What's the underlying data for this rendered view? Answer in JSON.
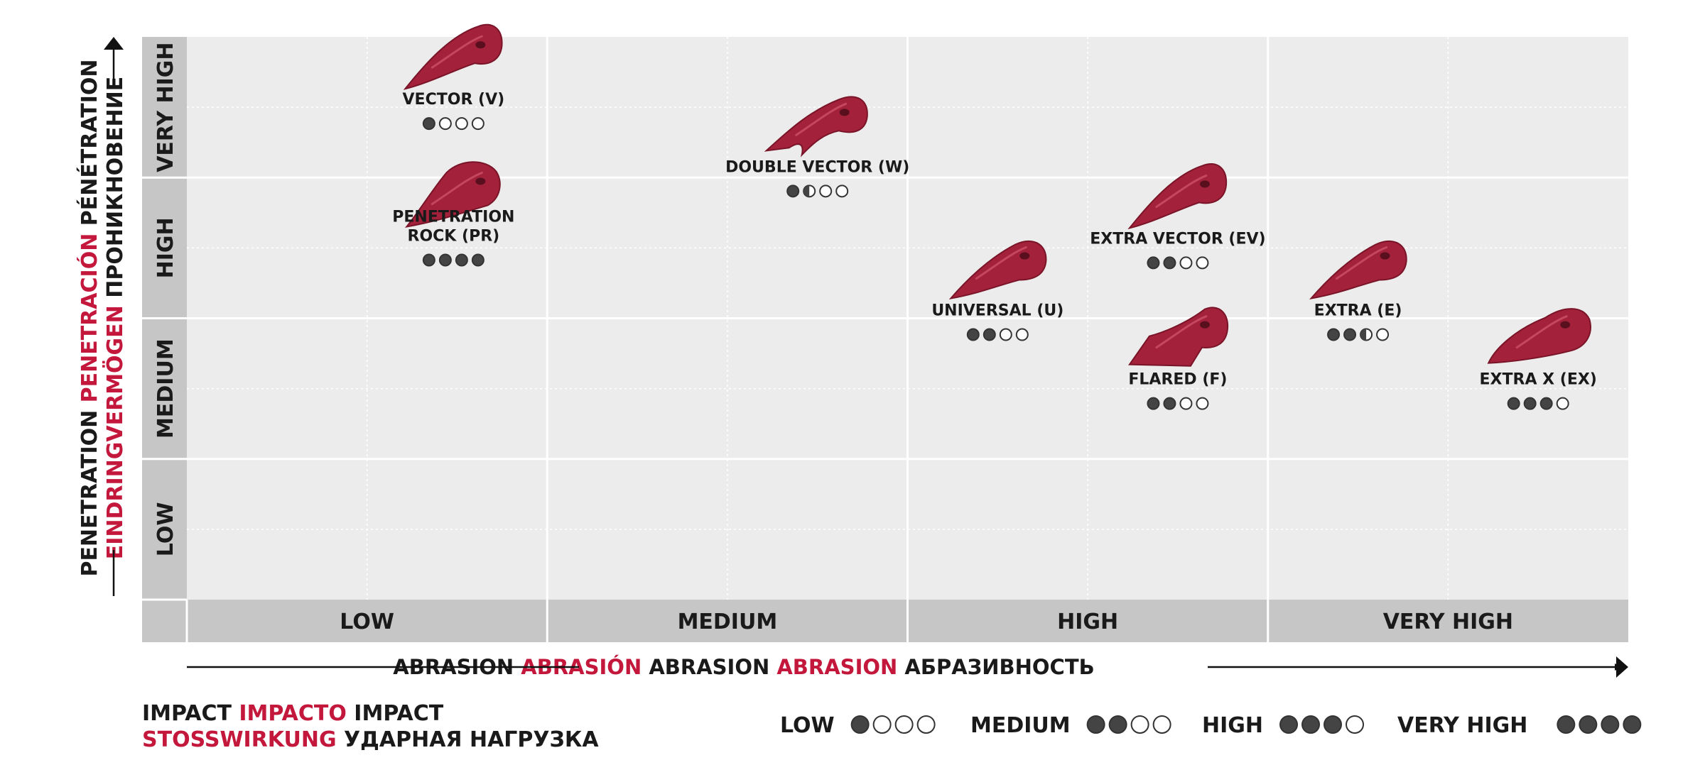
{
  "colors": {
    "accent": "#c3173c",
    "text": "#1a1a1a",
    "tooth": "#a3213a",
    "band": "#c6c6c6",
    "cell": "#ececec"
  },
  "chart_data": {
    "type": "scatter",
    "x_axis": {
      "label_parts": [
        {
          "text": "ABRASION",
          "accent": false
        },
        {
          "text": "ABRASIÓN",
          "accent": true
        },
        {
          "text": "ABRASION",
          "accent": false
        },
        {
          "text": "ABRASION",
          "accent": true
        },
        {
          "text": "АБРАЗИВНОСТЬ",
          "accent": false
        }
      ],
      "categories": [
        "LOW",
        "MEDIUM",
        "HIGH",
        "VERY HIGH"
      ]
    },
    "y_axis": {
      "label_line1": [
        {
          "text": "PENETRATION",
          "accent": false
        },
        {
          "text": "PENETRACIÓN",
          "accent": true
        },
        {
          "text": "PÉNÉTRATION",
          "accent": false
        }
      ],
      "label_line2": [
        {
          "text": "EINDRINGVERMÖGEN",
          "accent": true
        },
        {
          "text": "ПРОНИКНОВЕНИЕ",
          "accent": false
        }
      ],
      "categories": [
        "LOW",
        "MEDIUM",
        "HIGH",
        "VERY HIGH"
      ]
    },
    "points": [
      {
        "name": "VECTOR (V)",
        "x": 0.74,
        "y": 3.52,
        "impact": 1,
        "image": "tooth-pointed"
      },
      {
        "name": "DOUBLE VECTOR (W)",
        "x": 1.75,
        "y": 3.04,
        "impact": 1.5,
        "image": "tooth-double"
      },
      {
        "name": "PENETRATION ROCK (PR)",
        "x": 0.74,
        "y": 2.55,
        "impact": 4,
        "image": "tooth-rock"
      },
      {
        "name": "EXTRA VECTOR (EV)",
        "x": 2.75,
        "y": 2.53,
        "impact": 2,
        "image": "tooth-pointed"
      },
      {
        "name": "UNIVERSAL (U)",
        "x": 2.25,
        "y": 2.02,
        "impact": 2,
        "image": "tooth-standard"
      },
      {
        "name": "EXTRA (E)",
        "x": 3.25,
        "y": 2.02,
        "impact": 2.5,
        "image": "tooth-standard"
      },
      {
        "name": "FLARED (F)",
        "x": 2.75,
        "y": 1.53,
        "impact": 2,
        "image": "tooth-flared"
      },
      {
        "name": "EXTRA X (EX)",
        "x": 3.75,
        "y": 1.53,
        "impact": 3,
        "image": "tooth-heavy"
      }
    ],
    "impact_legend": {
      "title_line1": [
        {
          "text": "IMPACT",
          "accent": false
        },
        {
          "text": "IMPACTO",
          "accent": true
        },
        {
          "text": "IMPACT",
          "accent": false
        }
      ],
      "title_line2": [
        {
          "text": "STOSSWIRKUNG",
          "accent": true
        },
        {
          "text": "УДАРНАЯ НАГРУЗКА",
          "accent": false
        }
      ],
      "levels": [
        {
          "label": "LOW",
          "filled": 1
        },
        {
          "label": "MEDIUM",
          "filled": 2
        },
        {
          "label": "HIGH",
          "filled": 3
        },
        {
          "label": "VERY HIGH",
          "filled": 4
        }
      ]
    },
    "grid": true
  }
}
